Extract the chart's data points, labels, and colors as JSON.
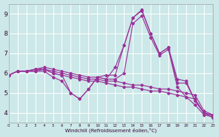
{
  "xlabel": "Windchill (Refroidissement éolien,°C)",
  "bg_color": "#cce8e8",
  "grid_color": "#ffffff",
  "line_color": "#993399",
  "xlim": [
    0,
    23
  ],
  "ylim": [
    3.5,
    9.5
  ],
  "x": [
    0,
    1,
    2,
    3,
    4,
    5,
    6,
    7,
    8,
    9,
    10,
    11,
    12,
    13,
    14,
    15,
    16,
    17,
    18,
    19,
    20,
    21,
    22,
    23
  ],
  "lines": [
    [
      5.9,
      6.1,
      6.1,
      6.2,
      6.2,
      6.1,
      6.0,
      5.9,
      5.8,
      5.7,
      5.7,
      5.6,
      5.6,
      5.5,
      5.4,
      5.4,
      5.3,
      5.2,
      5.2,
      5.1,
      5.0,
      4.9,
      4.1,
      3.9
    ],
    [
      5.9,
      6.1,
      6.1,
      6.2,
      6.2,
      6.0,
      5.9,
      5.8,
      5.7,
      5.6,
      5.6,
      5.5,
      5.4,
      5.3,
      5.3,
      5.2,
      5.1,
      5.1,
      5.0,
      4.9,
      4.8,
      4.7,
      4.0,
      3.9
    ],
    [
      5.9,
      6.1,
      6.1,
      6.2,
      6.3,
      6.2,
      6.1,
      6.0,
      5.9,
      5.8,
      5.8,
      5.7,
      6.3,
      7.4,
      8.8,
      9.2,
      8.0,
      7.0,
      7.3,
      5.7,
      5.6,
      4.6,
      4.0,
      3.85
    ],
    [
      5.9,
      6.1,
      6.1,
      6.1,
      6.2,
      6.0,
      5.9,
      5.0,
      4.7,
      5.2,
      5.8,
      5.9,
      5.9,
      7.4,
      8.8,
      9.15,
      8.0,
      7.0,
      7.3,
      5.5,
      5.5,
      4.6,
      4.0,
      3.75
    ],
    [
      5.9,
      6.1,
      6.1,
      6.1,
      6.1,
      5.8,
      5.6,
      5.0,
      4.7,
      5.2,
      5.8,
      5.7,
      5.7,
      6.0,
      8.5,
      8.9,
      7.8,
      6.9,
      7.2,
      5.3,
      4.8,
      4.4,
      3.9,
      3.8
    ]
  ]
}
